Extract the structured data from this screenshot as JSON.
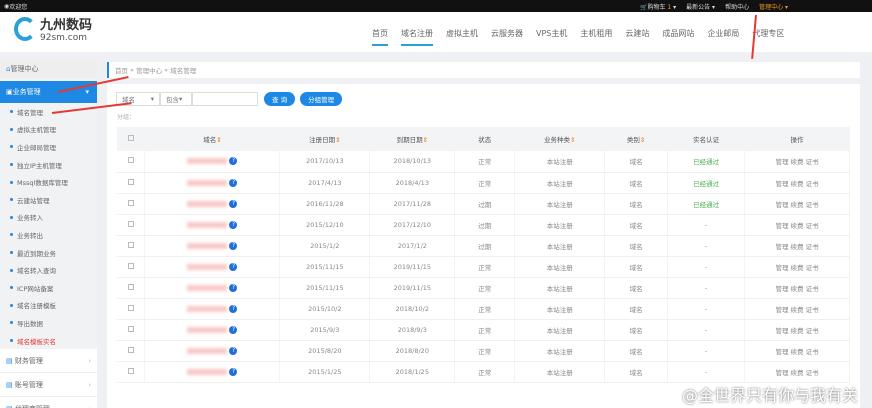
{
  "topbar": {
    "welcome": "欢迎您",
    "cart": "购物车",
    "cart_count": "1",
    "notice": "最新公告 ▾",
    "help": "帮助中心",
    "admin": "管理中心 ▾"
  },
  "logo": {
    "name": "九州数码",
    "domain": "92sm.com"
  },
  "nav": [
    "首页",
    "域名注册",
    "虚拟主机",
    "云服务器",
    "VPS主机",
    "主机租用",
    "云建站",
    "成品网站",
    "企业邮局",
    "代理专区"
  ],
  "sidebar": {
    "home": "管理中心",
    "business": "业务管理",
    "items": [
      {
        "label": "域名管理"
      },
      {
        "label": "虚拟主机管理"
      },
      {
        "label": "企业邮局管理"
      },
      {
        "label": "独立IP主机管理"
      },
      {
        "label": "Mssql数据库管理"
      },
      {
        "label": "云建站管理"
      },
      {
        "label": "业务转入"
      },
      {
        "label": "业务转出"
      },
      {
        "label": "最近到期业务"
      },
      {
        "label": "域名转入查询"
      },
      {
        "label": "ICP网站备案"
      },
      {
        "label": "域名注册模板"
      },
      {
        "label": "导出数据"
      },
      {
        "label": "域名模板实名"
      }
    ],
    "groups": [
      "财务管理",
      "账号管理",
      "代理商管理"
    ]
  },
  "breadcrumb": [
    "首页",
    "管理中心",
    "域名管理"
  ],
  "search": {
    "field": "域名",
    "op": "包含",
    "query_btn": "查 询",
    "group_btn": "分组管理",
    "group_label": "分组："
  },
  "table": {
    "headers": [
      "域名",
      "注册日期",
      "到期日期",
      "状态",
      "业务种类",
      "类别",
      "实名认证",
      "操作"
    ],
    "rows": [
      [
        "2017/10/13",
        "2018/10/13",
        "正常",
        "本站注册",
        "域名",
        "已经通过"
      ],
      [
        "2017/4/13",
        "2018/4/13",
        "正常",
        "本站注册",
        "域名",
        "已经通过"
      ],
      [
        "2016/11/28",
        "2017/11/28",
        "过期",
        "本站注册",
        "域名",
        "已经通过"
      ],
      [
        "2015/12/10",
        "2017/12/10",
        "过期",
        "本站注册",
        "域名",
        "-"
      ],
      [
        "2015/1/2",
        "2017/1/2",
        "过期",
        "本站注册",
        "域名",
        "-"
      ],
      [
        "2015/11/15",
        "2019/11/15",
        "正常",
        "本站注册",
        "域名",
        "-"
      ],
      [
        "2015/11/15",
        "2019/11/15",
        "正常",
        "本站注册",
        "域名",
        "-"
      ],
      [
        "2015/10/2",
        "2018/10/2",
        "正常",
        "本站注册",
        "域名",
        "-"
      ],
      [
        "2015/9/3",
        "2018/9/3",
        "正常",
        "本站注册",
        "域名",
        "-"
      ],
      [
        "2015/8/20",
        "2018/8/20",
        "正常",
        "本站注册",
        "域名",
        "-"
      ],
      [
        "2015/1/25",
        "2018/1/25",
        "正常",
        "本站注册",
        "域名",
        "-"
      ]
    ],
    "actions": [
      "管理",
      "续费",
      "证书"
    ]
  },
  "watermark": "@全世界只有你与我有关"
}
